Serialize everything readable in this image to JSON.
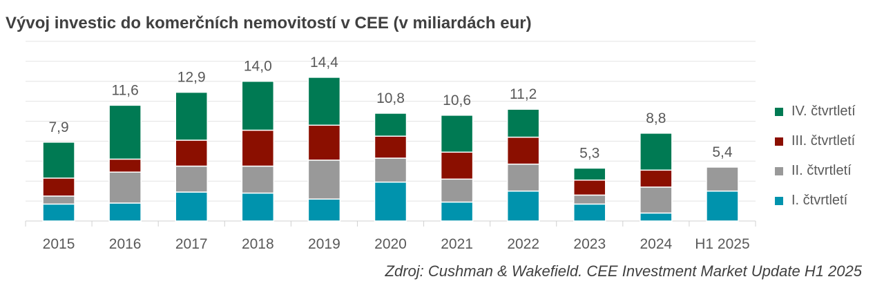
{
  "title": "Vývoj investic do komerčních nemovitostí v CEE (v miliardách eur)",
  "source": "Zdroj: Cushman & Wakefield. CEE Investment Market Update H1 2025",
  "chart_data": {
    "type": "bar",
    "stacked": true,
    "title": "Vývoj investic do komerčních nemovitostí v CEE (v miliardách eur)",
    "categories": [
      "2015",
      "2016",
      "2017",
      "2018",
      "2019",
      "2020",
      "2021",
      "2022",
      "2023",
      "2024",
      "H1 2025"
    ],
    "totals": [
      "7,9",
      "11,6",
      "12,9",
      "14,0",
      "14,4",
      "10,8",
      "10,6",
      "11,2",
      "5,3",
      "8,8",
      "5,4"
    ],
    "series": [
      {
        "name": "I. čtvrtletí",
        "color": "#0093ad",
        "values": [
          1.7,
          1.8,
          2.9,
          2.8,
          2.2,
          3.9,
          1.9,
          3.0,
          1.7,
          0.8,
          3.0
        ]
      },
      {
        "name": "II. čtvrtletí",
        "color": "#999999",
        "values": [
          0.8,
          3.1,
          2.6,
          2.7,
          3.9,
          2.4,
          2.3,
          2.7,
          0.9,
          2.6,
          2.4
        ]
      },
      {
        "name": "III. čtvrtletí",
        "color": "#8b0f00",
        "values": [
          1.8,
          1.3,
          2.6,
          3.6,
          3.5,
          2.2,
          2.7,
          2.7,
          1.5,
          1.7,
          0
        ]
      },
      {
        "name": "IV. čtvrtletí",
        "color": "#007a53",
        "values": [
          3.6,
          5.4,
          4.8,
          4.9,
          4.8,
          2.3,
          3.7,
          2.8,
          1.2,
          3.7,
          0
        ]
      }
    ],
    "ylim": [
      0,
      18
    ],
    "grid": true,
    "legend_position": "right",
    "legend_order": [
      "IV. čtvrtletí",
      "III. čtvrtletí",
      "II. čtvrtletí",
      "I. čtvrtletí"
    ]
  }
}
